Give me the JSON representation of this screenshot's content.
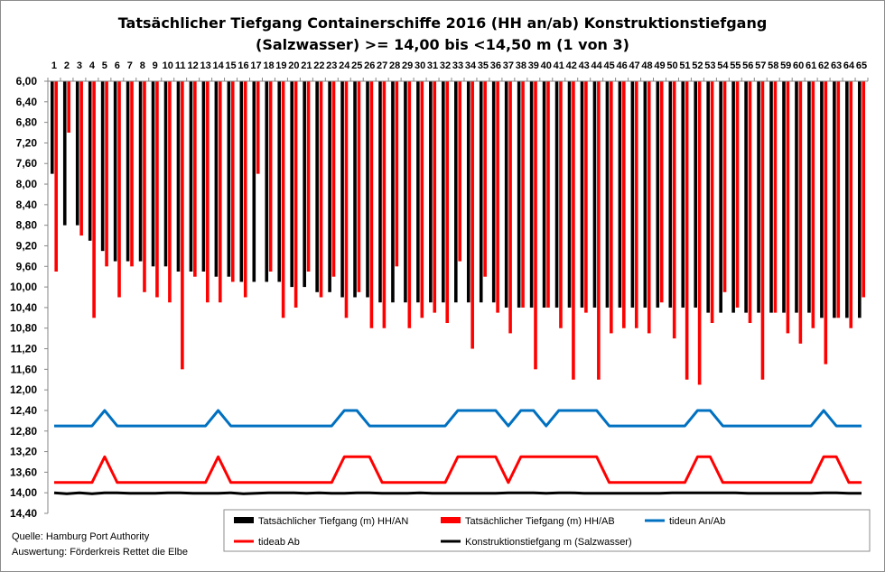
{
  "chart_data": {
    "type": "bar",
    "title_line1": "Tatsächlicher  Tiefgang Containerschiffe  2016 (HH an/ab)  Konstruktionstiefgang",
    "title_line2": "(Salzwasser) >= 14,00 bis <14,50 m (1 von 3)",
    "y_axis": {
      "min": 6.0,
      "max": 14.4,
      "step": 0.4,
      "inverted": true
    },
    "y_tick_labels": [
      "6,00",
      "6,40",
      "6,80",
      "7,20",
      "7,60",
      "8,00",
      "8,40",
      "8,80",
      "9,20",
      "9,60",
      "10,00",
      "10,40",
      "10,80",
      "11,20",
      "11,60",
      "12,00",
      "12,40",
      "12,80",
      "13,20",
      "13,60",
      "14,00",
      "14,40"
    ],
    "categories": [
      "1",
      "2",
      "3",
      "4",
      "5",
      "6",
      "7",
      "8",
      "9",
      "10",
      "11",
      "12",
      "13",
      "14",
      "15",
      "16",
      "17",
      "18",
      "19",
      "20",
      "21",
      "22",
      "23",
      "24",
      "25",
      "26",
      "27",
      "28",
      "29",
      "30",
      "31",
      "32",
      "33",
      "34",
      "35",
      "36",
      "37",
      "38",
      "39",
      "40",
      "41",
      "42",
      "43",
      "44",
      "45",
      "46",
      "47",
      "48",
      "49",
      "50",
      "51",
      "52",
      "53",
      "54",
      "55",
      "56",
      "57",
      "58",
      "59",
      "60",
      "61",
      "62",
      "63",
      "64",
      "65"
    ],
    "series": [
      {
        "name": "Tatsächlicher Tiefgang (m) HH/AN",
        "color": "#000000",
        "values": [
          7.8,
          8.8,
          8.8,
          9.1,
          9.3,
          9.5,
          9.5,
          9.5,
          9.6,
          9.6,
          9.7,
          9.7,
          9.7,
          9.8,
          9.8,
          9.9,
          9.9,
          9.9,
          9.9,
          10.0,
          10.0,
          10.1,
          10.1,
          10.2,
          10.2,
          10.2,
          10.3,
          10.3,
          10.3,
          10.3,
          10.3,
          10.3,
          10.3,
          10.3,
          10.3,
          10.3,
          10.4,
          10.4,
          10.4,
          10.4,
          10.4,
          10.4,
          10.4,
          10.4,
          10.4,
          10.4,
          10.4,
          10.4,
          10.4,
          10.4,
          10.4,
          10.4,
          10.5,
          10.5,
          10.5,
          10.5,
          10.5,
          10.5,
          10.5,
          10.5,
          10.5,
          10.6,
          10.6,
          10.6,
          10.6
        ]
      },
      {
        "name": "Tatsächlicher Tiefgang (m) HH/AB",
        "color": "#ff0000",
        "values": [
          9.7,
          7.0,
          9.0,
          10.6,
          9.6,
          10.2,
          9.6,
          10.1,
          10.2,
          10.3,
          11.6,
          9.8,
          10.3,
          10.3,
          9.9,
          10.2,
          7.8,
          9.7,
          10.6,
          10.4,
          9.7,
          10.2,
          9.8,
          10.6,
          10.1,
          10.8,
          10.8,
          9.6,
          10.8,
          10.6,
          10.5,
          10.7,
          9.5,
          11.2,
          9.8,
          10.5,
          10.9,
          10.4,
          11.6,
          10.4,
          10.8,
          11.8,
          10.5,
          11.8,
          10.9,
          10.8,
          10.8,
          10.9,
          10.3,
          11.0,
          11.8,
          11.9,
          10.7,
          10.1,
          10.4,
          10.7,
          11.8,
          10.5,
          10.9,
          11.1,
          10.8,
          11.5,
          10.6,
          10.8,
          10.2
        ]
      },
      {
        "name": "tideun An/Ab",
        "color": "#0070c0",
        "line": true,
        "values": [
          12.7,
          12.7,
          12.7,
          12.7,
          12.4,
          12.7,
          12.7,
          12.7,
          12.7,
          12.7,
          12.7,
          12.7,
          12.7,
          12.4,
          12.7,
          12.7,
          12.7,
          12.7,
          12.7,
          12.7,
          12.7,
          12.7,
          12.7,
          12.4,
          12.4,
          12.7,
          12.7,
          12.7,
          12.7,
          12.7,
          12.7,
          12.7,
          12.4,
          12.4,
          12.4,
          12.4,
          12.7,
          12.4,
          12.4,
          12.7,
          12.4,
          12.4,
          12.4,
          12.4,
          12.7,
          12.7,
          12.7,
          12.7,
          12.7,
          12.7,
          12.7,
          12.4,
          12.4,
          12.7,
          12.7,
          12.7,
          12.7,
          12.7,
          12.7,
          12.7,
          12.7,
          12.4,
          12.7,
          12.7,
          12.7
        ]
      },
      {
        "name": "tideab Ab",
        "color": "#ff0000",
        "line": true,
        "values": [
          13.8,
          13.8,
          13.8,
          13.8,
          13.3,
          13.8,
          13.8,
          13.8,
          13.8,
          13.8,
          13.8,
          13.8,
          13.8,
          13.3,
          13.8,
          13.8,
          13.8,
          13.8,
          13.8,
          13.8,
          13.8,
          13.8,
          13.8,
          13.3,
          13.3,
          13.3,
          13.8,
          13.8,
          13.8,
          13.8,
          13.8,
          13.8,
          13.3,
          13.3,
          13.3,
          13.3,
          13.8,
          13.3,
          13.3,
          13.3,
          13.3,
          13.3,
          13.3,
          13.3,
          13.8,
          13.8,
          13.8,
          13.8,
          13.8,
          13.8,
          13.8,
          13.3,
          13.3,
          13.8,
          13.8,
          13.8,
          13.8,
          13.8,
          13.8,
          13.8,
          13.8,
          13.3,
          13.3,
          13.8,
          13.8
        ]
      },
      {
        "name": "Konstruktionstiefgang  m (Salzwasser)",
        "color": "#000000",
        "line": true,
        "values": [
          14.0,
          14.02,
          14.0,
          14.02,
          14.0,
          14.0,
          14.01,
          14.01,
          14.01,
          14.0,
          14.0,
          14.01,
          14.01,
          14.01,
          14.0,
          14.02,
          14.01,
          14.0,
          14.0,
          14.0,
          14.01,
          14.0,
          14.01,
          14.01,
          14.0,
          14.0,
          14.01,
          14.01,
          14.01,
          14.0,
          14.01,
          14.01,
          14.01,
          14.01,
          14.01,
          14.01,
          14.0,
          14.0,
          14.0,
          14.01,
          14.0,
          14.0,
          14.01,
          14.01,
          14.01,
          14.01,
          14.01,
          14.01,
          14.01,
          14.0,
          14.0,
          14.0,
          14.0,
          14.0,
          14.0,
          14.01,
          14.01,
          14.01,
          14.01,
          14.01,
          14.01,
          14.0,
          14.0,
          14.01,
          14.01
        ]
      }
    ],
    "legend_placement": "bottom-right",
    "grid": false
  },
  "source": {
    "line1": "Quelle: Hamburg Port Authority",
    "line2": "Auswertung: Förderkreis Rettet die Elbe"
  }
}
